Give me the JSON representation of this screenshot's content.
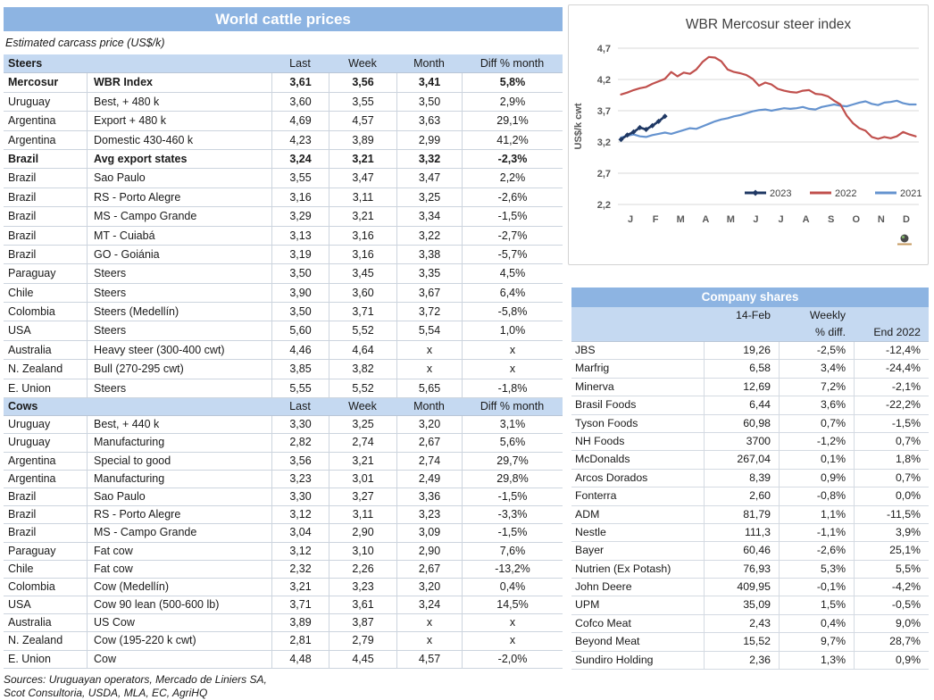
{
  "world_table": {
    "title": "World cattle prices",
    "subtitle": "Estimated carcass price (US$/k)",
    "value_columns": [
      "Last",
      "Week",
      "Month",
      "Diff % month"
    ],
    "sections": [
      {
        "label": "Steers",
        "rows": [
          {
            "country": "Mercosur",
            "item": "WBR Index",
            "last": "3,61",
            "week": "3,56",
            "month": "3,41",
            "diff": "5,8%",
            "bold": true
          },
          {
            "country": "Uruguay",
            "item": "Best, + 480 k",
            "last": "3,60",
            "week": "3,55",
            "month": "3,50",
            "diff": "2,9%"
          },
          {
            "country": "Argentina",
            "item": "Export + 480 k",
            "last": "4,69",
            "week": "4,57",
            "month": "3,63",
            "diff": "29,1%"
          },
          {
            "country": "Argentina",
            "item": "Domestic 430-460 k",
            "last": "4,23",
            "week": "3,89",
            "month": "2,99",
            "diff": "41,2%"
          },
          {
            "country": "Brazil",
            "item": "Avg export states",
            "last": "3,24",
            "week": "3,21",
            "month": "3,32",
            "diff": "-2,3%",
            "bold": true
          },
          {
            "country": "Brazil",
            "item": "Sao Paulo",
            "last": "3,55",
            "week": "3,47",
            "month": "3,47",
            "diff": "2,2%"
          },
          {
            "country": "Brazil",
            "item": "RS - Porto Alegre",
            "last": "3,16",
            "week": "3,11",
            "month": "3,25",
            "diff": "-2,6%"
          },
          {
            "country": "Brazil",
            "item": "MS - Campo Grande",
            "last": "3,29",
            "week": "3,21",
            "month": "3,34",
            "diff": "-1,5%"
          },
          {
            "country": "Brazil",
            "item": "MT - Cuiabá",
            "last": "3,13",
            "week": "3,16",
            "month": "3,22",
            "diff": "-2,7%"
          },
          {
            "country": "Brazil",
            "item": "GO - Goiánia",
            "last": "3,19",
            "week": "3,16",
            "month": "3,38",
            "diff": "-5,7%"
          },
          {
            "country": "Paraguay",
            "item": "Steers",
            "last": "3,50",
            "week": "3,45",
            "month": "3,35",
            "diff": "4,5%"
          },
          {
            "country": "Chile",
            "item": "Steers",
            "last": "3,90",
            "week": "3,60",
            "month": "3,67",
            "diff": "6,4%"
          },
          {
            "country": "Colombia",
            "item": "Steers (Medellín)",
            "last": "3,50",
            "week": "3,71",
            "month": "3,72",
            "diff": "-5,8%"
          },
          {
            "country": "USA",
            "item": "Steers",
            "last": "5,60",
            "week": "5,52",
            "month": "5,54",
            "diff": "1,0%"
          },
          {
            "country": "Australia",
            "item": "Heavy steer (300-400 cwt)",
            "last": "4,46",
            "week": "4,64",
            "month": "x",
            "diff": "x"
          },
          {
            "country": "N. Zealand",
            "item": "Bull (270-295 cwt)",
            "last": "3,85",
            "week": "3,82",
            "month": "x",
            "diff": "x"
          },
          {
            "country": "E. Union",
            "item": "Steers",
            "last": "5,55",
            "week": "5,52",
            "month": "5,65",
            "diff": "-1,8%"
          }
        ]
      },
      {
        "label": "Cows",
        "rows": [
          {
            "country": "Uruguay",
            "item": "Best, + 440 k",
            "last": "3,30",
            "week": "3,25",
            "month": "3,20",
            "diff": "3,1%"
          },
          {
            "country": "Uruguay",
            "item": "Manufacturing",
            "last": "2,82",
            "week": "2,74",
            "month": "2,67",
            "diff": "5,6%"
          },
          {
            "country": "Argentina",
            "item": "Special to good",
            "last": "3,56",
            "week": "3,21",
            "month": "2,74",
            "diff": "29,7%"
          },
          {
            "country": "Argentina",
            "item": "Manufacturing",
            "last": "3,23",
            "week": "3,01",
            "month": "2,49",
            "diff": "29,8%"
          },
          {
            "country": "Brazil",
            "item": "Sao Paulo",
            "last": "3,30",
            "week": "3,27",
            "month": "3,36",
            "diff": "-1,5%"
          },
          {
            "country": "Brazil",
            "item": "RS - Porto Alegre",
            "last": "3,12",
            "week": "3,11",
            "month": "3,23",
            "diff": "-3,3%"
          },
          {
            "country": "Brazil",
            "item": "MS - Campo Grande",
            "last": "3,04",
            "week": "2,90",
            "month": "3,09",
            "diff": "-1,5%"
          },
          {
            "country": "Paraguay",
            "item": "Fat cow",
            "last": "3,12",
            "week": "3,10",
            "month": "2,90",
            "diff": "7,6%"
          },
          {
            "country": "Chile",
            "item": "Fat cow",
            "last": "2,32",
            "week": "2,26",
            "month": "2,67",
            "diff": "-13,2%"
          },
          {
            "country": "Colombia",
            "item": "Cow (Medellín)",
            "last": "3,21",
            "week": "3,23",
            "month": "3,20",
            "diff": "0,4%"
          },
          {
            "country": "USA",
            "item": "Cow 90 lean (500-600 lb)",
            "last": "3,71",
            "week": "3,61",
            "month": "3,24",
            "diff": "14,5%"
          },
          {
            "country": "Australia",
            "item": "US Cow",
            "last": "3,89",
            "week": "3,87",
            "month": "x",
            "diff": "x"
          },
          {
            "country": "N. Zealand",
            "item": "Cow (195-220 k cwt)",
            "last": "2,81",
            "week": "2,79",
            "month": "x",
            "diff": "x"
          },
          {
            "country": "E. Union",
            "item": "Cow",
            "last": "4,48",
            "week": "4,45",
            "month": "4,57",
            "diff": "-2,0%"
          }
        ]
      }
    ],
    "sources_line1": "Sources: Uruguayan operators, Mercado de Liniers SA,",
    "sources_line2": "Scot Consultoria, USDA, MLA, EC, AgriHQ"
  },
  "chart_data": {
    "type": "line",
    "title": "WBR Mercosur steer index",
    "ylabel": "US$/k cwt",
    "ylim": [
      2.2,
      4.7
    ],
    "yticks": [
      4.7,
      4.2,
      3.7,
      3.2,
      2.7,
      2.2
    ],
    "x_months": [
      "J",
      "F",
      "M",
      "A",
      "M",
      "J",
      "J",
      "A",
      "S",
      "O",
      "N",
      "D"
    ],
    "weeks_per_year": 48,
    "grid": true,
    "legend_position": "inside-bottom-right",
    "series": [
      {
        "name": "2021",
        "color": "#6593CF",
        "marker": false,
        "values": [
          3.27,
          3.3,
          3.32,
          3.29,
          3.28,
          3.31,
          3.33,
          3.35,
          3.33,
          3.36,
          3.39,
          3.42,
          3.41,
          3.45,
          3.49,
          3.53,
          3.56,
          3.58,
          3.61,
          3.63,
          3.66,
          3.69,
          3.71,
          3.72,
          3.7,
          3.72,
          3.74,
          3.73,
          3.74,
          3.76,
          3.73,
          3.72,
          3.76,
          3.78,
          3.8,
          3.78,
          3.77,
          3.8,
          3.83,
          3.85,
          3.81,
          3.79,
          3.83,
          3.84,
          3.86,
          3.82,
          3.8,
          3.8
        ]
      },
      {
        "name": "2022",
        "color": "#C0504D",
        "marker": false,
        "values": [
          3.96,
          3.99,
          4.03,
          4.06,
          4.08,
          4.13,
          4.17,
          4.21,
          4.32,
          4.25,
          4.31,
          4.29,
          4.36,
          4.48,
          4.56,
          4.55,
          4.49,
          4.36,
          4.32,
          4.3,
          4.27,
          4.21,
          4.1,
          4.15,
          4.12,
          4.05,
          4.02,
          4.0,
          3.99,
          4.02,
          4.03,
          3.97,
          3.96,
          3.93,
          3.86,
          3.8,
          3.62,
          3.5,
          3.42,
          3.38,
          3.28,
          3.25,
          3.28,
          3.26,
          3.29,
          3.36,
          3.32,
          3.29
        ]
      },
      {
        "name": "2023",
        "color": "#1F3864",
        "marker": true,
        "values": [
          3.24,
          3.31,
          3.36,
          3.43,
          3.4,
          3.46,
          3.53,
          3.61
        ]
      }
    ],
    "legend_order": [
      "2023",
      "2022",
      "2021"
    ]
  },
  "company_table": {
    "title": "Company shares",
    "header": {
      "row1": [
        "",
        "14-Feb",
        "Weekly",
        ""
      ],
      "row2": [
        "",
        "",
        "% diff.",
        "End 2022"
      ]
    },
    "rows": [
      {
        "name": "JBS",
        "price": "19,26",
        "weekly": "-2,5%",
        "end2022": "-12,4%"
      },
      {
        "name": "Marfrig",
        "price": "6,58",
        "weekly": "3,4%",
        "end2022": "-24,4%"
      },
      {
        "name": "Minerva",
        "price": "12,69",
        "weekly": "7,2%",
        "end2022": "-2,1%"
      },
      {
        "name": "Brasil Foods",
        "price": "6,44",
        "weekly": "3,6%",
        "end2022": "-22,2%"
      },
      {
        "name": "Tyson Foods",
        "price": "60,98",
        "weekly": "0,7%",
        "end2022": "-1,5%"
      },
      {
        "name": "NH Foods",
        "price": "3700",
        "weekly": "-1,2%",
        "end2022": "0,7%"
      },
      {
        "name": "McDonalds",
        "price": "267,04",
        "weekly": "0,1%",
        "end2022": "1,8%"
      },
      {
        "name": "Arcos Dorados",
        "price": "8,39",
        "weekly": "0,9%",
        "end2022": "0,7%"
      },
      {
        "name": "Fonterra",
        "price": "2,60",
        "weekly": "-0,8%",
        "end2022": "0,0%"
      },
      {
        "name": "ADM",
        "price": "81,79",
        "weekly": "1,1%",
        "end2022": "-11,5%"
      },
      {
        "name": "Nestle",
        "price": "111,3",
        "weekly": "-1,1%",
        "end2022": "3,9%"
      },
      {
        "name": "Bayer",
        "price": "60,46",
        "weekly": "-2,6%",
        "end2022": "25,1%"
      },
      {
        "name": "Nutrien (Ex Potash)",
        "price": "76,93",
        "weekly": "5,3%",
        "end2022": "5,5%"
      },
      {
        "name": "John Deere",
        "price": "409,95",
        "weekly": "-0,1%",
        "end2022": "-4,2%"
      },
      {
        "name": "UPM",
        "price": "35,09",
        "weekly": "1,5%",
        "end2022": "-0,5%"
      },
      {
        "name": "Cofco Meat",
        "price": "2,43",
        "weekly": "0,4%",
        "end2022": "9,0%"
      },
      {
        "name": "Beyond Meat",
        "price": "15,52",
        "weekly": "9,7%",
        "end2022": "28,7%"
      },
      {
        "name": "Sundiro Holding",
        "price": "2,36",
        "weekly": "1,3%",
        "end2022": "0,9%"
      }
    ]
  },
  "colors": {
    "header_bar": "#8DB4E2",
    "header_light": "#C5D9F1",
    "gridline": "#D9D9D9",
    "axis_text": "#595959",
    "chart_title_text": "#3F3F3F",
    "series_2023": "#1F3864",
    "series_2022": "#C0504D",
    "series_2021": "#6593CF"
  }
}
